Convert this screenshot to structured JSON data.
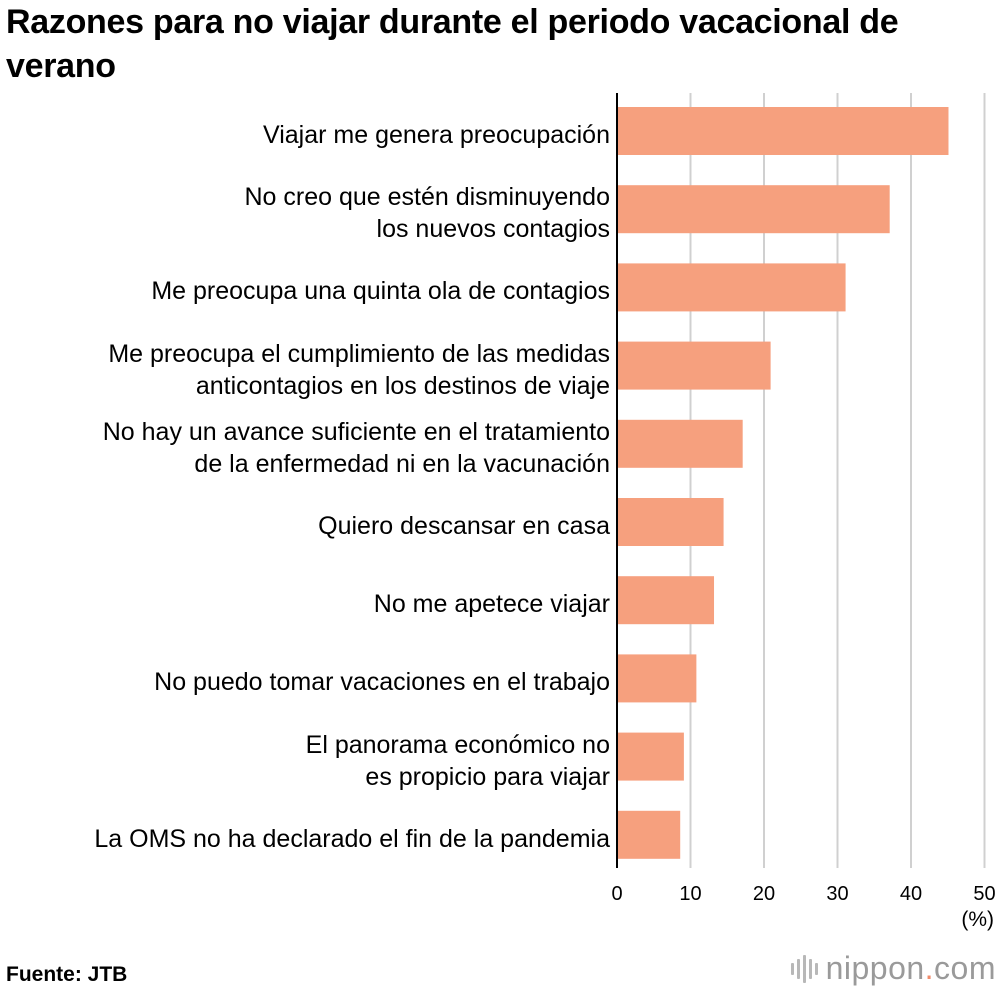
{
  "title": "Razones para no viajar durante el periodo vacacional de verano",
  "source": "Fuente: JTB",
  "brand": {
    "name": "nippon",
    "dot": ".",
    "suffix": "com",
    "icon": "nippon-logo-icon"
  },
  "colors": {
    "bar": "#f6a07e",
    "grid": "#d0d0d0",
    "axis": "#000000",
    "brand_dot": "#f08a6a"
  },
  "chart_data": {
    "type": "bar",
    "orientation": "horizontal",
    "title": "Razones para no viajar durante el periodo vacacional de verano",
    "xlabel": "(%)",
    "ylabel": "",
    "xlim": [
      0,
      50
    ],
    "xticks": [
      "0",
      "10",
      "20",
      "30",
      "40",
      "50"
    ],
    "grid": true,
    "categories": [
      "Viajar me genera preocupación",
      "No creo que estén disminuyendo\nlos nuevos contagios",
      "Me preocupa una quinta ola de contagios",
      "Me preocupa el cumplimiento de las medidas\nanticontagios en los destinos de viaje",
      "No hay un avance suficiente en el tratamiento\nde la enfermedad ni en la vacunación",
      "Quiero descansar en casa",
      "No me apetece viajar",
      "No puedo tomar vacaciones en el trabajo",
      "El panorama económico no\nes propicio para viajar",
      "La OMS no ha declarado el fin de la pandemia"
    ],
    "values": [
      45.1,
      37.1,
      31.1,
      20.9,
      17.1,
      14.5,
      13.2,
      10.8,
      9.1,
      8.6
    ]
  }
}
